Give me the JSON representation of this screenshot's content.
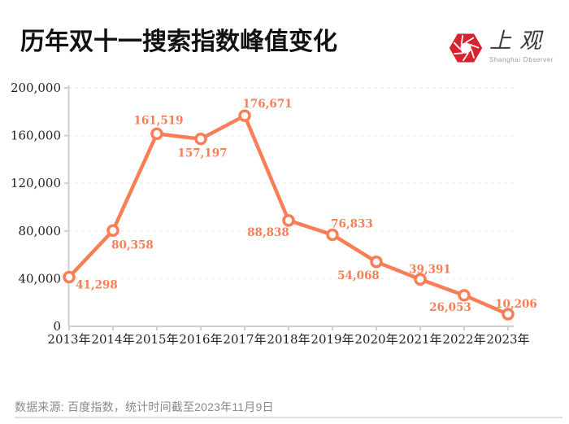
{
  "header": {
    "title": "历年双十一搜索指数峰值变化",
    "logo": {
      "wordmark": "上观",
      "subtitle": "Shanghai Observer",
      "brand_color": "#d7232e"
    }
  },
  "chart_data": {
    "type": "line",
    "title": "历年双十一搜索指数峰值变化",
    "categories": [
      "2013年",
      "2014年",
      "2015年",
      "2016年",
      "2017年",
      "2018年",
      "2019年",
      "2020年",
      "2021年",
      "2022年",
      "2023年"
    ],
    "values": [
      41298,
      80358,
      161519,
      157197,
      176671,
      88838,
      76833,
      54068,
      39391,
      26053,
      10206
    ],
    "point_labels": [
      "41,298",
      "80,358",
      "161,519",
      "157,197",
      "176,671",
      "88,838",
      "76,833",
      "54,068",
      "39,391",
      "26,053",
      "10,206"
    ],
    "y_tick_labels": [
      "0",
      "40,000",
      "80,000",
      "120,000",
      "160,000",
      "200,000"
    ],
    "ylim": [
      0,
      200000
    ],
    "y_tick_step": 40000,
    "xlabel": "",
    "ylabel": "",
    "grid": "horizontal-dashed",
    "legend": "none",
    "line_color": "#f87e55",
    "marker": "open-circle",
    "marker_fill": "#ffffff",
    "axis_color": "#cfcfcf",
    "grid_color": "#ededed",
    "tick_text_color": "#222222"
  },
  "footer": {
    "source_note": "数据来源: 百度指数，统计时间截至2023年11月9日"
  }
}
